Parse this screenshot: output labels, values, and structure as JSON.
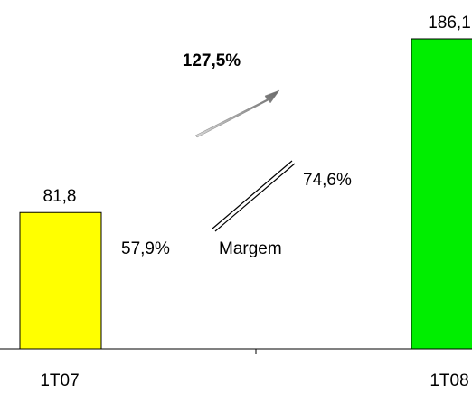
{
  "chart_data": {
    "type": "bar",
    "categories": [
      "1T07",
      "1T08"
    ],
    "values": [
      81.8,
      186.1
    ],
    "value_labels": [
      "81,8",
      "186,1"
    ],
    "bar_colors": [
      "#ffff00",
      "#00ee00"
    ],
    "ylim": [
      0,
      186.1
    ],
    "grid": false,
    "annotations": {
      "growth": "127,5%",
      "margin_start": "57,9%",
      "margin_end": "74,6%",
      "margin_label": "Margem"
    }
  }
}
